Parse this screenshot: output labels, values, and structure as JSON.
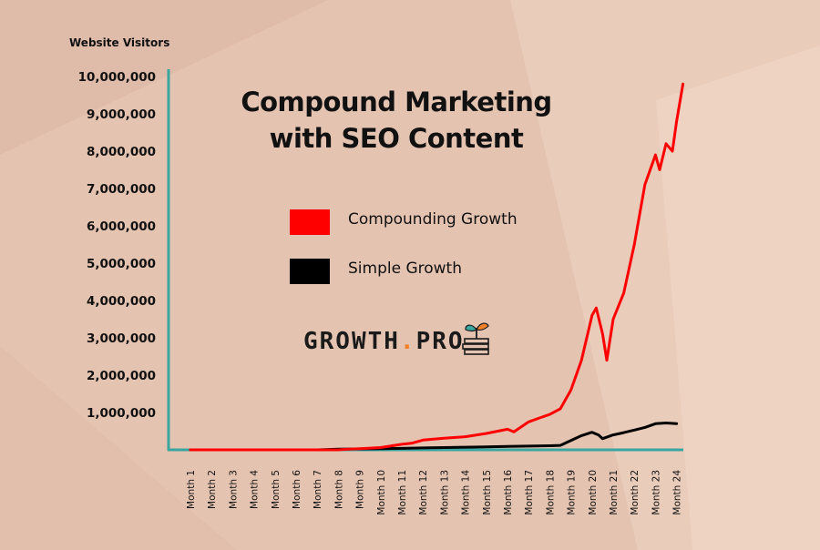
{
  "chart_data": {
    "type": "line",
    "title_lines": [
      "Compound Marketing",
      "with SEO Content"
    ],
    "ylabel": "Website Visitors",
    "xlabel": "",
    "ylim": [
      0,
      10000000
    ],
    "yticks": [
      "1,000,000",
      "2,000,000",
      "3,000,000",
      "4,000,000",
      "5,000,000",
      "6,000,000",
      "7,000,000",
      "8,000,000",
      "9,000,000",
      "10,000,000"
    ],
    "ytick_values": [
      1000000,
      2000000,
      3000000,
      4000000,
      5000000,
      6000000,
      7000000,
      8000000,
      9000000,
      10000000
    ],
    "categories": [
      "Month 1",
      "Month 2",
      "Month 3",
      "Month 4",
      "Month 5",
      "Month 6",
      "Month 7",
      "Month 8",
      "Month 9",
      "Month 10",
      "Month 11",
      "Month 12",
      "Month 13",
      "Month 14",
      "Month 15",
      "Month 16",
      "Month 17",
      "Month 18",
      "Month 19",
      "Month 20",
      "Month 21",
      "Month 22",
      "Month 23",
      "Month 24"
    ],
    "legend_position": "center",
    "grid": false,
    "series": [
      {
        "name": "Compounding Growth",
        "color": "#ff0000",
        "x": [
          1,
          2,
          3,
          4,
          5,
          6,
          7,
          8,
          8.5,
          9,
          10,
          11,
          11.5,
          12,
          13,
          14,
          15,
          16,
          16.3,
          17,
          17.5,
          18,
          18.5,
          19,
          19.5,
          20,
          20.2,
          20.5,
          20.7,
          21,
          21.5,
          22,
          22.5,
          23,
          23.2,
          23.5,
          23.8,
          24,
          24.3
        ],
        "y": [
          0,
          0,
          0,
          0,
          0,
          0,
          0,
          0,
          20000,
          30000,
          60000,
          150000,
          180000,
          260000,
          310000,
          350000,
          440000,
          550000,
          480000,
          750000,
          850000,
          950000,
          1100000,
          1600000,
          2400000,
          3600000,
          3800000,
          3100000,
          2400000,
          3500000,
          4200000,
          5500000,
          7100000,
          7900000,
          7500000,
          8200000,
          8000000,
          8800000,
          9800000
        ]
      },
      {
        "name": "Simple Growth",
        "color": "#000000",
        "x": [
          1,
          2,
          3,
          4,
          5,
          6,
          7,
          8,
          9,
          10,
          11,
          12,
          13,
          14,
          15,
          16,
          17,
          18,
          18.5,
          19,
          19.5,
          20,
          20.3,
          20.5,
          21,
          21.5,
          22,
          22.5,
          23,
          23.5,
          24
        ],
        "y": [
          0,
          0,
          0,
          0,
          0,
          0,
          0,
          20000,
          25000,
          30000,
          40000,
          50000,
          60000,
          70000,
          80000,
          90000,
          100000,
          110000,
          120000,
          250000,
          380000,
          470000,
          400000,
          300000,
          400000,
          460000,
          530000,
          600000,
          700000,
          720000,
          700000
        ]
      }
    ]
  },
  "brand": {
    "name_left": "GROWTH",
    "dot": ".",
    "name_right": "PRO",
    "logo_icon": "seedling-on-books-icon"
  },
  "colors": {
    "axis": "#3aa6a0",
    "accent": "#f0812a"
  }
}
